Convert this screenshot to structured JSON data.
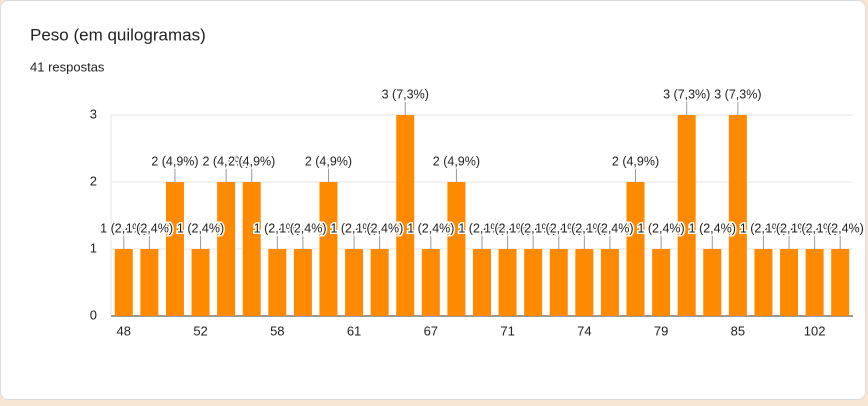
{
  "chart_data": {
    "type": "bar",
    "title": "Peso (em quilogramas)",
    "subtitle": "41 respostas",
    "categories": [
      "48",
      null,
      null,
      "52",
      null,
      null,
      "58",
      null,
      null,
      "61",
      null,
      null,
      "67",
      null,
      null,
      "71",
      null,
      null,
      "74",
      null,
      null,
      "79",
      null,
      null,
      "85",
      null,
      null,
      "102",
      null
    ],
    "values": [
      1,
      1,
      2,
      1,
      2,
      2,
      1,
      1,
      2,
      1,
      1,
      3,
      1,
      2,
      1,
      1,
      1,
      1,
      1,
      1,
      2,
      1,
      3,
      1,
      3,
      1,
      1,
      1,
      1
    ],
    "value_labels": [
      "1 (2,4%)",
      "1 (2,4%)",
      "2 (4,9%)",
      "1 (2,4%)",
      "2 (4,9%)",
      "2 (4,9%)",
      "1 (2,4%)",
      "1 (2,4%)",
      "2 (4,9%)",
      "1 (2,4%)",
      "1 (2,4%)",
      "3 (7,3%)",
      "1 (2,4%)",
      "2 (4,9%)",
      "1 (2,4%)",
      "1 (2,4%)",
      "1 (2,4%)",
      "1 (2,4%)",
      "1 (2,4%)",
      "1 (2,4%)",
      "2 (4,9%)",
      "1 (2,4%)",
      "3 (7,3%)",
      "1 (2,4%)",
      "3 (7,3%)",
      "1 (2,4%)",
      "1 (2,4%)",
      "1 (2,4%)",
      "1 (2,4%)"
    ],
    "color": "#ff8a00",
    "ylim": [
      0,
      3
    ],
    "yticks": [
      0,
      1,
      2,
      3
    ],
    "grid": true
  }
}
